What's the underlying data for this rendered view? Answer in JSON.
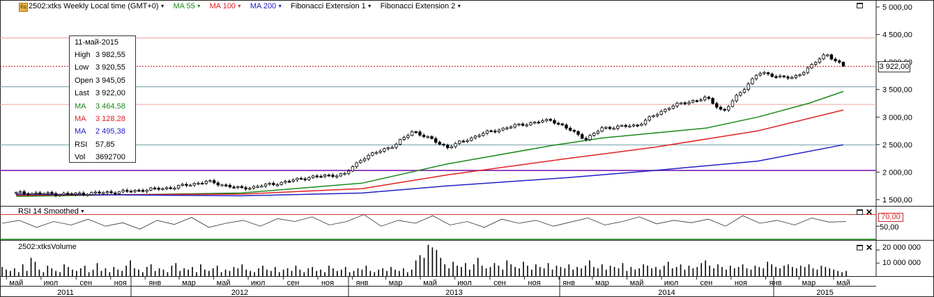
{
  "toolbar": {
    "eq_icon": "Eq",
    "symbol_title": "2502:xtks Weekly Local time (GMT+0)",
    "ma55_label": "MA 55",
    "ma100_label": "MA 100",
    "ma200_label": "MA 200",
    "fib1_label": "Fibonacci Extension 1",
    "fib2_label": "Fibonacci Extension 2"
  },
  "infobox": {
    "date": "11-май-2015",
    "rows": [
      {
        "key": "High",
        "value": "3 982,55",
        "color": "#000000"
      },
      {
        "key": "Low",
        "value": "3 920,55",
        "color": "#000000"
      },
      {
        "key": "Open",
        "value": "3 945,05",
        "color": "#000000"
      },
      {
        "key": "Last",
        "value": "3 922,00",
        "color": "#000000"
      },
      {
        "key": "MA",
        "value": "3 464,58",
        "color": "#1a8a1a"
      },
      {
        "key": "MA",
        "value": "3 128,28",
        "color": "#e02020"
      },
      {
        "key": "MA",
        "value": "2 495,38",
        "color": "#2020c8"
      },
      {
        "key": "RSI",
        "value": "57,85",
        "color": "#000000"
      },
      {
        "key": "Vol",
        "value": "3692700",
        "color": "#000000"
      }
    ]
  },
  "price_tag": "3 922,00",
  "rsi_panel": {
    "title": "RSI 14 Smoothed",
    "level_tag": "70,00",
    "axis_label": "50,00"
  },
  "volume_panel": {
    "title": "2502:xtksVolume",
    "axis_labels": [
      "20 000 000",
      "10 000 000"
    ]
  },
  "colors": {
    "ma55": "#1a8a1a",
    "ma100": "#e02020",
    "ma200": "#2020c8",
    "fib_line": "#f0a0a0",
    "teal_line": "#6a9aa5",
    "purple_line": "#7a1ab0",
    "last_price": "#c81010"
  },
  "icons": {
    "window": "maximize-icon",
    "close": "close-icon",
    "dropdown": "dropdown-triangle-icon"
  },
  "chart_data": [
    {
      "type": "candlestick",
      "title": "",
      "x_range": [
        "2011-05",
        "2015-05"
      ],
      "ylim": [
        1400,
        5100
      ],
      "y_ticks": [
        1500,
        2000,
        2500,
        3000,
        3500,
        4000,
        4500,
        5000
      ],
      "y_tick_labels": [
        "1 500,00",
        "2 000,00",
        "2 500,00",
        "3 000,00",
        "3 500,00",
        "4 000,00",
        "4 500,00",
        "5 000,00"
      ],
      "grid": false,
      "x_months": [
        "май",
        "июл",
        "сен",
        "ноя",
        "янв",
        "мар",
        "май",
        "июл",
        "сен",
        "ноя",
        "янв",
        "мар",
        "май",
        "июл",
        "сен",
        "ноя",
        "янв",
        "мар",
        "май",
        "июл",
        "сен",
        "ноя",
        "янв",
        "мар",
        "май"
      ],
      "x_years": [
        "2011",
        "2012",
        "2013",
        "2014",
        "2015"
      ],
      "horizontal_levels": [
        {
          "value": 4436,
          "kind": "fibonacci"
        },
        {
          "value": 3922,
          "kind": "last price"
        },
        {
          "value": 3550,
          "kind": "support"
        },
        {
          "value": 3230,
          "kind": "fibonacci"
        },
        {
          "value": 2495,
          "kind": "support"
        },
        {
          "value": 2030,
          "kind": "purple level"
        }
      ],
      "price_path": [
        [
          "2011-05",
          1620
        ],
        [
          "2011-08",
          1600
        ],
        [
          "2011-11",
          1640
        ],
        [
          "2012-02",
          1720
        ],
        [
          "2012-04",
          1830
        ],
        [
          "2012-06",
          1700
        ],
        [
          "2012-08",
          1790
        ],
        [
          "2012-10",
          1910
        ],
        [
          "2012-12",
          1960
        ],
        [
          "2013-01",
          2250
        ],
        [
          "2013-03",
          2500
        ],
        [
          "2013-04",
          2750
        ],
        [
          "2013-06",
          2450
        ],
        [
          "2013-08",
          2700
        ],
        [
          "2013-10",
          2850
        ],
        [
          "2013-12",
          2950
        ],
        [
          "2014-02",
          2600
        ],
        [
          "2014-03",
          2800
        ],
        [
          "2014-05",
          2850
        ],
        [
          "2014-07",
          3200
        ],
        [
          "2014-09",
          3350
        ],
        [
          "2014-10",
          3100
        ],
        [
          "2014-12",
          3800
        ],
        [
          "2015-02",
          3700
        ],
        [
          "2015-03",
          3900
        ],
        [
          "2015-04",
          4150
        ],
        [
          "2015-05",
          3922
        ]
      ],
      "series": [
        {
          "name": "MA 55",
          "color": "#1a8a1a",
          "path": [
            [
              "2011-05",
              1560
            ],
            [
              "2012-06",
              1620
            ],
            [
              "2013-01",
              1800
            ],
            [
              "2013-06",
              2150
            ],
            [
              "2013-12",
              2480
            ],
            [
              "2014-03",
              2620
            ],
            [
              "2014-09",
              2800
            ],
            [
              "2014-12",
              3000
            ],
            [
              "2015-03",
              3250
            ],
            [
              "2015-05",
              3464.58
            ]
          ]
        },
        {
          "name": "MA 100",
          "color": "#e02020",
          "path": [
            [
              "2011-05",
              1580
            ],
            [
              "2012-06",
              1600
            ],
            [
              "2013-01",
              1700
            ],
            [
              "2013-06",
              1950
            ],
            [
              "2014-01",
              2250
            ],
            [
              "2014-06",
              2450
            ],
            [
              "2014-12",
              2750
            ],
            [
              "2015-05",
              3128.28
            ]
          ]
        },
        {
          "name": "MA 200",
          "color": "#2020c8",
          "path": [
            [
              "2011-05",
              1600
            ],
            [
              "2012-06",
              1570
            ],
            [
              "2013-01",
              1620
            ],
            [
              "2013-06",
              1750
            ],
            [
              "2014-01",
              1900
            ],
            [
              "2014-06",
              2030
            ],
            [
              "2014-12",
              2200
            ],
            [
              "2015-05",
              2495.38
            ]
          ]
        }
      ]
    },
    {
      "type": "line",
      "title": "RSI 14 Smoothed",
      "ylim": [
        30,
        80
      ],
      "levels": [
        70,
        30
      ],
      "axis_label_value": 50,
      "values": [
        55,
        60,
        48,
        58,
        52,
        62,
        50,
        56,
        45,
        60,
        53,
        65,
        48,
        55,
        60,
        50,
        63,
        58,
        66,
        52,
        58,
        70,
        50,
        60,
        55,
        68,
        52,
        58,
        48,
        62,
        55,
        60,
        50,
        57,
        64,
        52,
        58,
        66,
        54,
        60,
        56,
        62,
        50,
        68,
        55,
        60,
        52,
        64,
        57,
        58
      ]
    },
    {
      "type": "bar",
      "title": "2502:xtksVolume",
      "ylim": [
        0,
        25000000
      ],
      "y_ticks": [
        10000000,
        20000000
      ],
      "values": [
        7,
        5,
        4,
        6,
        3,
        9,
        4,
        14,
        11,
        5,
        3,
        8,
        6,
        4,
        3,
        9,
        7,
        5,
        4,
        6,
        8,
        3,
        5,
        10,
        4,
        6,
        3,
        7,
        5,
        4,
        8,
        12,
        6,
        5,
        3,
        7,
        9,
        4,
        6,
        5,
        3,
        8,
        10,
        4,
        6,
        5,
        7,
        3,
        9,
        5,
        4,
        6,
        8,
        3,
        5,
        4,
        7,
        6,
        9,
        5,
        4,
        3,
        6,
        8,
        5,
        4,
        7,
        3,
        5,
        6,
        4,
        8,
        5,
        3,
        6,
        7,
        4,
        5,
        3,
        8,
        6,
        4,
        5,
        7,
        3,
        4,
        6,
        5,
        8,
        4,
        3,
        5,
        6,
        4,
        7,
        5,
        4,
        6,
        3,
        5,
        12,
        16,
        14,
        24,
        22,
        20,
        14,
        9,
        6,
        11,
        8,
        7,
        10,
        5,
        9,
        14,
        8,
        6,
        7,
        10,
        8,
        5,
        12,
        9,
        7,
        6,
        11,
        8,
        5,
        9,
        7,
        6,
        10,
        5,
        8,
        7,
        6,
        9,
        5,
        7,
        6,
        8,
        12,
        7,
        6,
        9,
        5,
        8,
        7,
        6,
        10,
        4,
        7,
        5,
        6,
        9,
        8,
        6,
        7,
        5,
        8,
        11,
        6,
        7,
        9,
        5,
        8,
        6,
        7,
        10,
        12,
        8,
        6,
        9,
        7,
        5,
        8,
        6,
        7,
        9,
        6,
        5,
        8,
        7,
        6,
        11,
        9,
        7,
        6,
        8,
        9,
        7,
        6,
        8,
        7,
        9,
        6,
        5,
        8,
        7,
        6,
        5,
        4,
        3,
        4
      ]
    }
  ]
}
